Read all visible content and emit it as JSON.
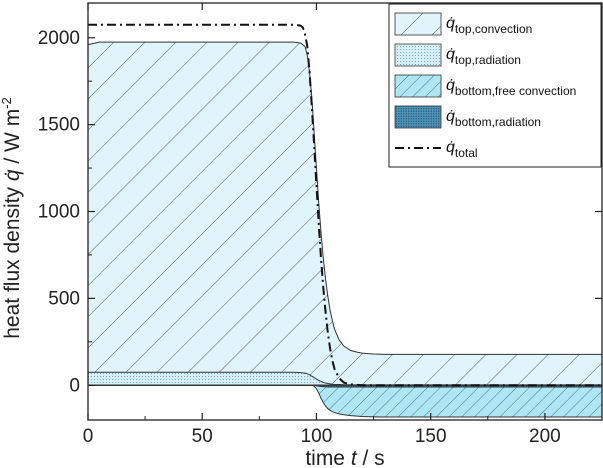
{
  "chart_data": {
    "type": "area",
    "xlabel": {
      "prefix": "time ",
      "var": "t",
      "unit": " / s"
    },
    "ylabel": {
      "prefix": "heat flux density ",
      "var": "q̇",
      "unit": " / W m",
      "sup": "-2"
    },
    "xlim": [
      0,
      225
    ],
    "ylim": [
      -200,
      2200
    ],
    "xticks": [
      0,
      50,
      100,
      150,
      200
    ],
    "yticks": [
      0,
      500,
      1000,
      1500,
      2000
    ],
    "x": [
      0,
      5,
      90,
      93,
      95,
      96,
      97,
      98,
      99,
      100,
      101,
      102,
      103,
      104,
      105,
      106,
      107,
      108,
      110,
      112,
      115,
      118,
      120,
      125,
      130,
      140,
      150,
      160,
      200,
      225
    ],
    "series": [
      {
        "name_main": "q̇",
        "name_sub": "top,convection",
        "pattern": "diag-wide",
        "fill": "#dff4fb",
        "values": [
          1960,
          1975,
          1975,
          1970,
          1950,
          1900,
          1800,
          1650,
          1450,
          1250,
          1050,
          880,
          730,
          610,
          510,
          430,
          370,
          320,
          260,
          225,
          200,
          190,
          185,
          180,
          178,
          178,
          178,
          178,
          178,
          178
        ]
      },
      {
        "name_main": "q̇",
        "name_sub": "top,radiation",
        "pattern": "dots",
        "fill": "#cfeaf5",
        "values": [
          75,
          75,
          75,
          73,
          70,
          66,
          60,
          52,
          44,
          36,
          28,
          22,
          17,
          13,
          10,
          8,
          6,
          5,
          4,
          3,
          2,
          2,
          2,
          2,
          2,
          2,
          2,
          2,
          2,
          2
        ]
      },
      {
        "name_main": "q̇",
        "name_sub": "bottom,free convection",
        "pattern": "diag-dense",
        "fill": "#a8e4f2",
        "values": [
          0,
          0,
          0,
          0,
          0,
          0,
          0,
          0,
          -5,
          -20,
          -45,
          -75,
          -100,
          -120,
          -135,
          -145,
          -152,
          -158,
          -165,
          -170,
          -175,
          -178,
          -180,
          -182,
          -183,
          -183,
          -183,
          -183,
          -183,
          -183
        ]
      },
      {
        "name_main": "q̇",
        "name_sub": "bottom,radiation",
        "pattern": "dense-dots",
        "fill": "#5ea7c9",
        "values": [
          0,
          0,
          0,
          0,
          0,
          0,
          0,
          0,
          -1,
          -3,
          -5,
          -7,
          -8,
          -9,
          -10,
          -10,
          -10,
          -10,
          -10,
          -10,
          -10,
          -10,
          -10,
          -10,
          -10,
          -10,
          -10,
          -10,
          -10,
          -10
        ]
      }
    ],
    "total": {
      "name_main": "q̇",
      "name_sub": "total",
      "style": "dash-dot",
      "x": [
        0,
        90,
        93,
        94,
        95,
        96,
        97,
        98,
        99,
        100,
        101,
        102,
        103,
        104,
        105,
        106,
        107,
        108,
        110,
        112,
        115,
        118,
        120,
        130,
        150,
        200,
        225
      ],
      "values": [
        2075,
        2075,
        2070,
        2060,
        2020,
        1950,
        1800,
        1600,
        1380,
        1150,
        930,
        730,
        560,
        420,
        300,
        210,
        140,
        90,
        40,
        15,
        5,
        2,
        0,
        0,
        0,
        0,
        0
      ]
    },
    "grid": false,
    "legend_position": "top-right",
    "colors": {
      "axis": "#222222",
      "hatch": "#333333",
      "total_line": "#111111"
    }
  }
}
